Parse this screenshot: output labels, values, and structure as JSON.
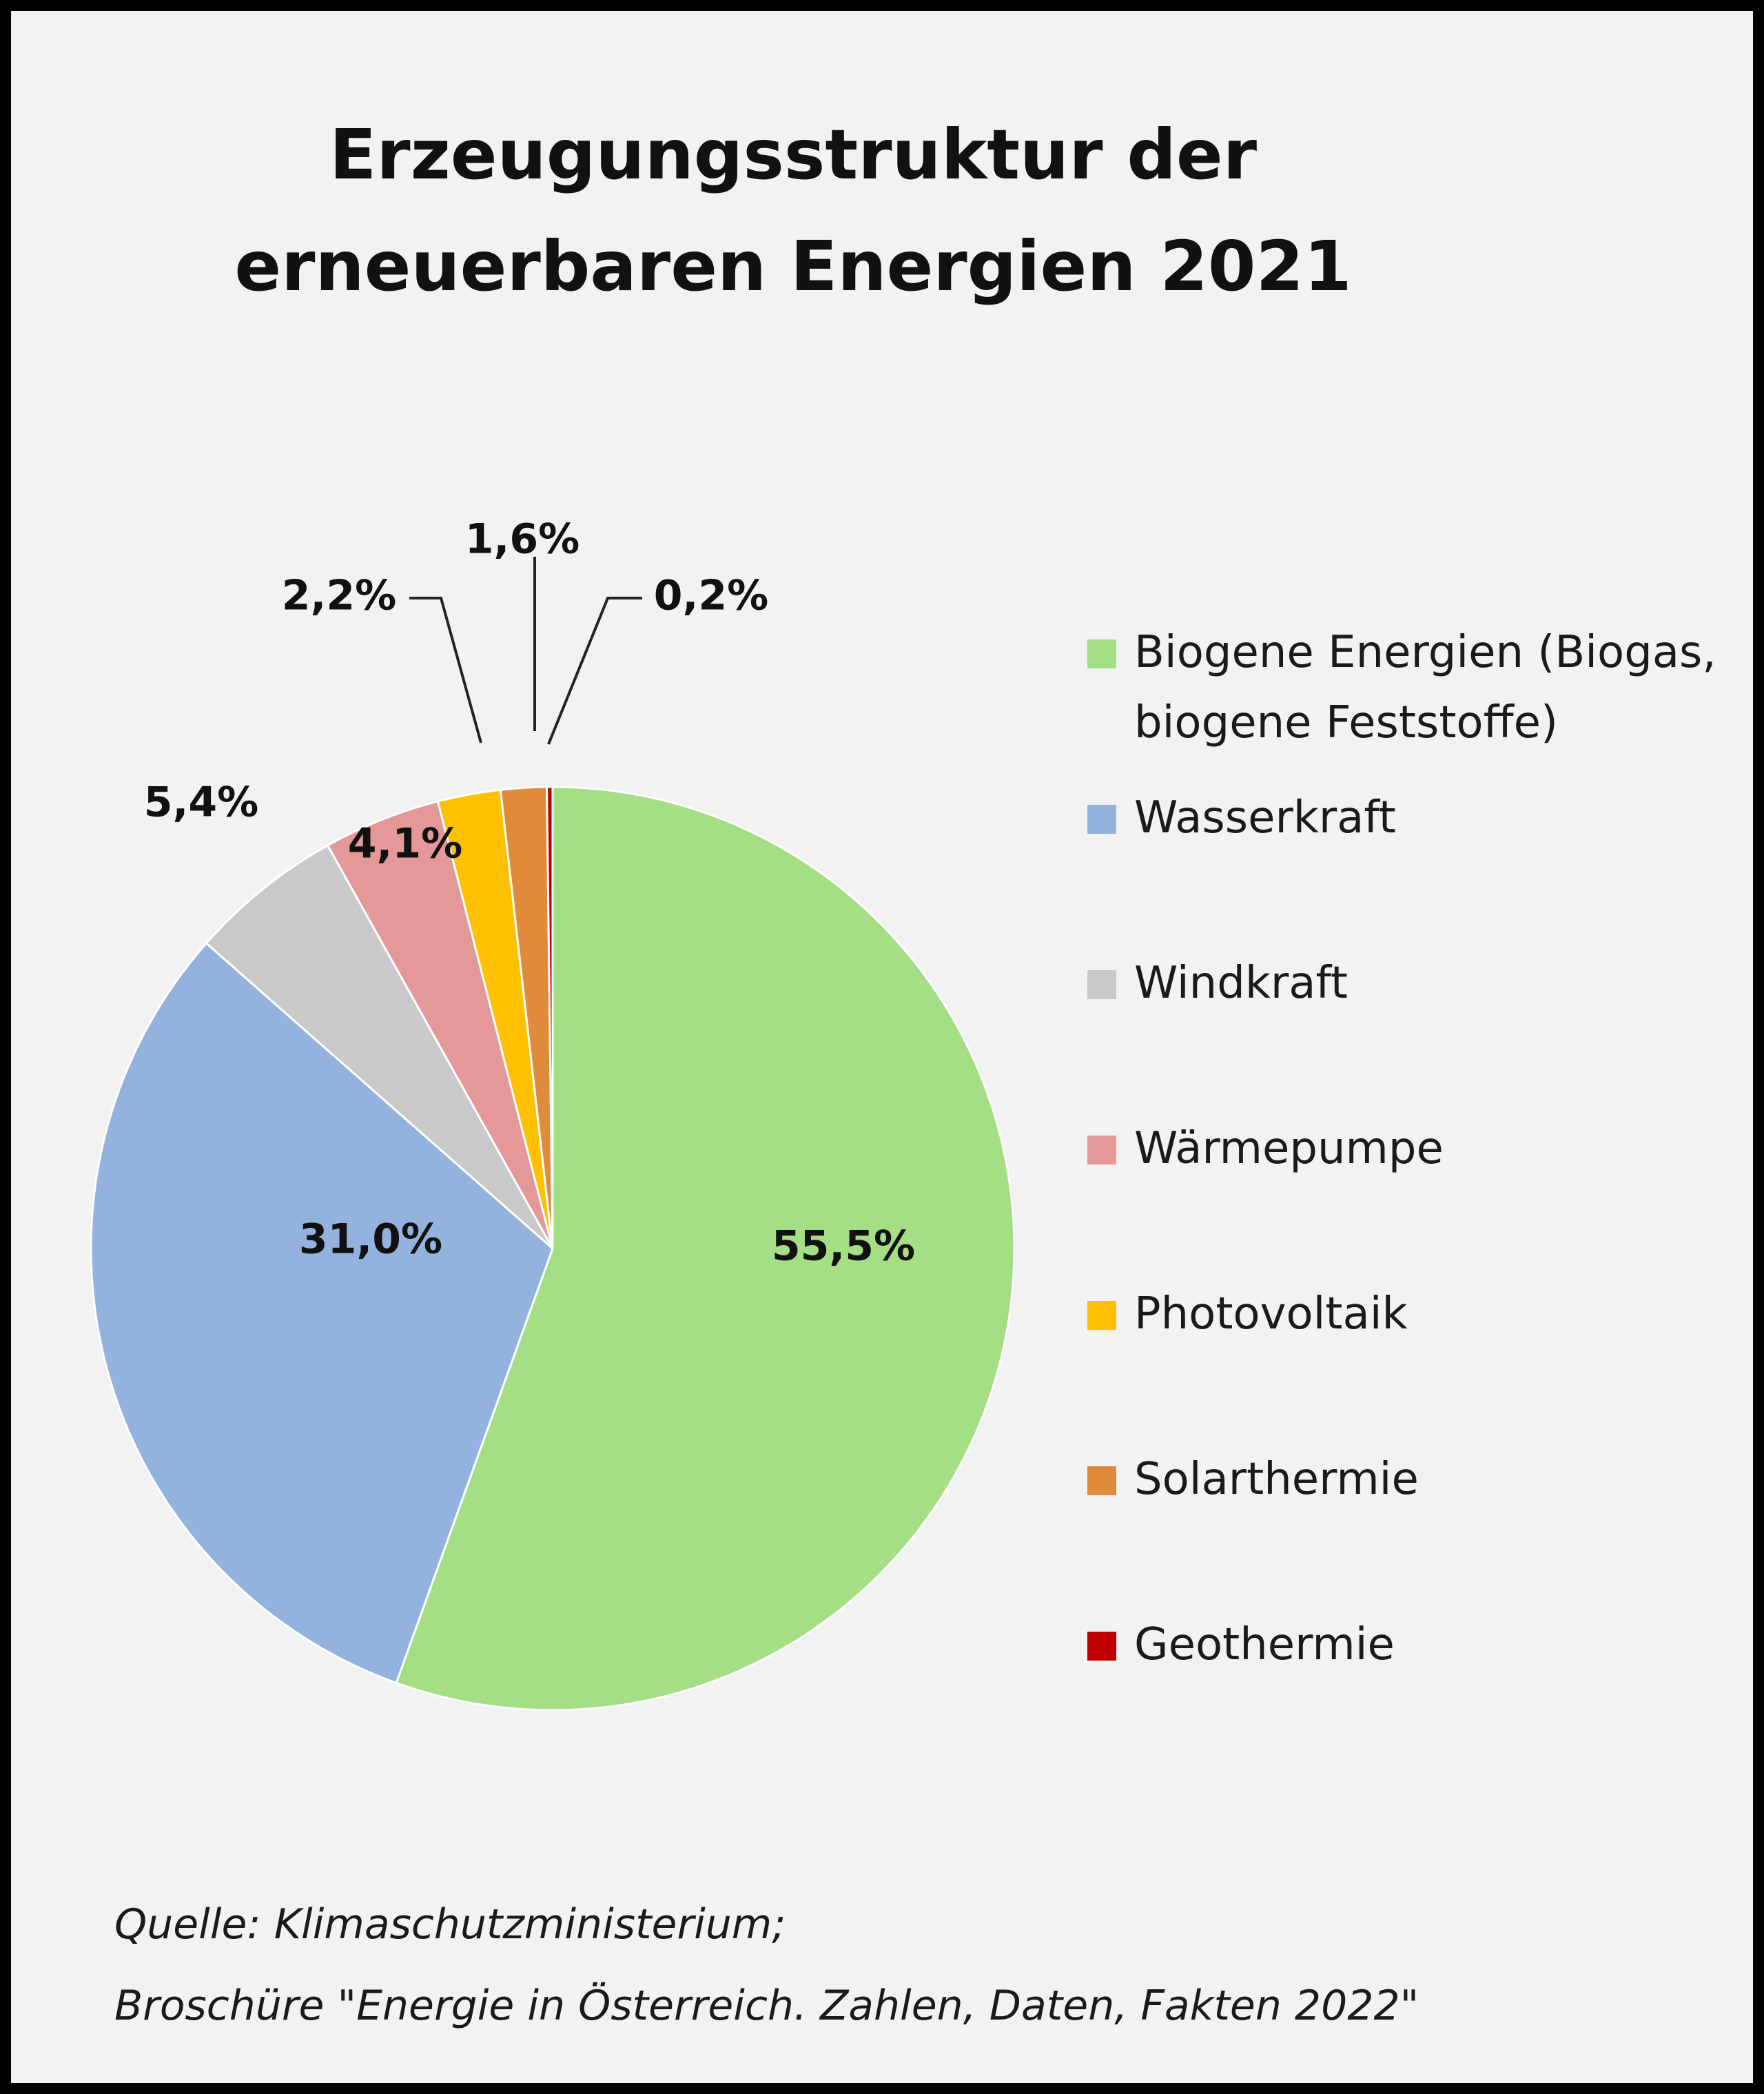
{
  "chart_data": {
    "type": "pie",
    "title": "Erzeugungsstruktur der erneuerbaren Energien 2021",
    "title_lines": [
      "Erzeugungsstruktur der",
      "erneuerbaren Energien 2021"
    ],
    "legend_position": "right",
    "slices": [
      {
        "name": "Biogene Energien (Biogas, biogene Feststoffe)",
        "legend_lines": "Biogene Energien (Biogas,\nbiogene Feststoffe)",
        "value": 55.5,
        "label": "55,5%",
        "color": "#a4df85"
      },
      {
        "name": "Wasserkraft",
        "legend_lines": "Wasserkraft",
        "value": 31.0,
        "label": "31,0%",
        "color": "#93b3de"
      },
      {
        "name": "Windkraft",
        "legend_lines": "Windkraft",
        "value": 5.4,
        "label": "5,4%",
        "color": "#c9c9c9"
      },
      {
        "name": "Wärmepumpe",
        "legend_lines": "Wärmepumpe",
        "value": 4.1,
        "label": "4,1%",
        "color": "#e49898"
      },
      {
        "name": "Photovoltaik",
        "legend_lines": "Photovoltaik",
        "value": 2.2,
        "label": "2,2%",
        "color": "#ffc000"
      },
      {
        "name": "Solarthermie",
        "legend_lines": "Solarthermie",
        "value": 1.6,
        "label": "1,6%",
        "color": "#e08a3c"
      },
      {
        "name": "Geothermie",
        "legend_lines": "Geothermie",
        "value": 0.2,
        "label": "0,2%",
        "color": "#c00000"
      }
    ]
  },
  "source": {
    "line1": "Quelle: Klimaschutzministerium;",
    "line2": "Broschüre \"Energie in Österreich. Zahlen, Daten, Fakten 2022\""
  }
}
